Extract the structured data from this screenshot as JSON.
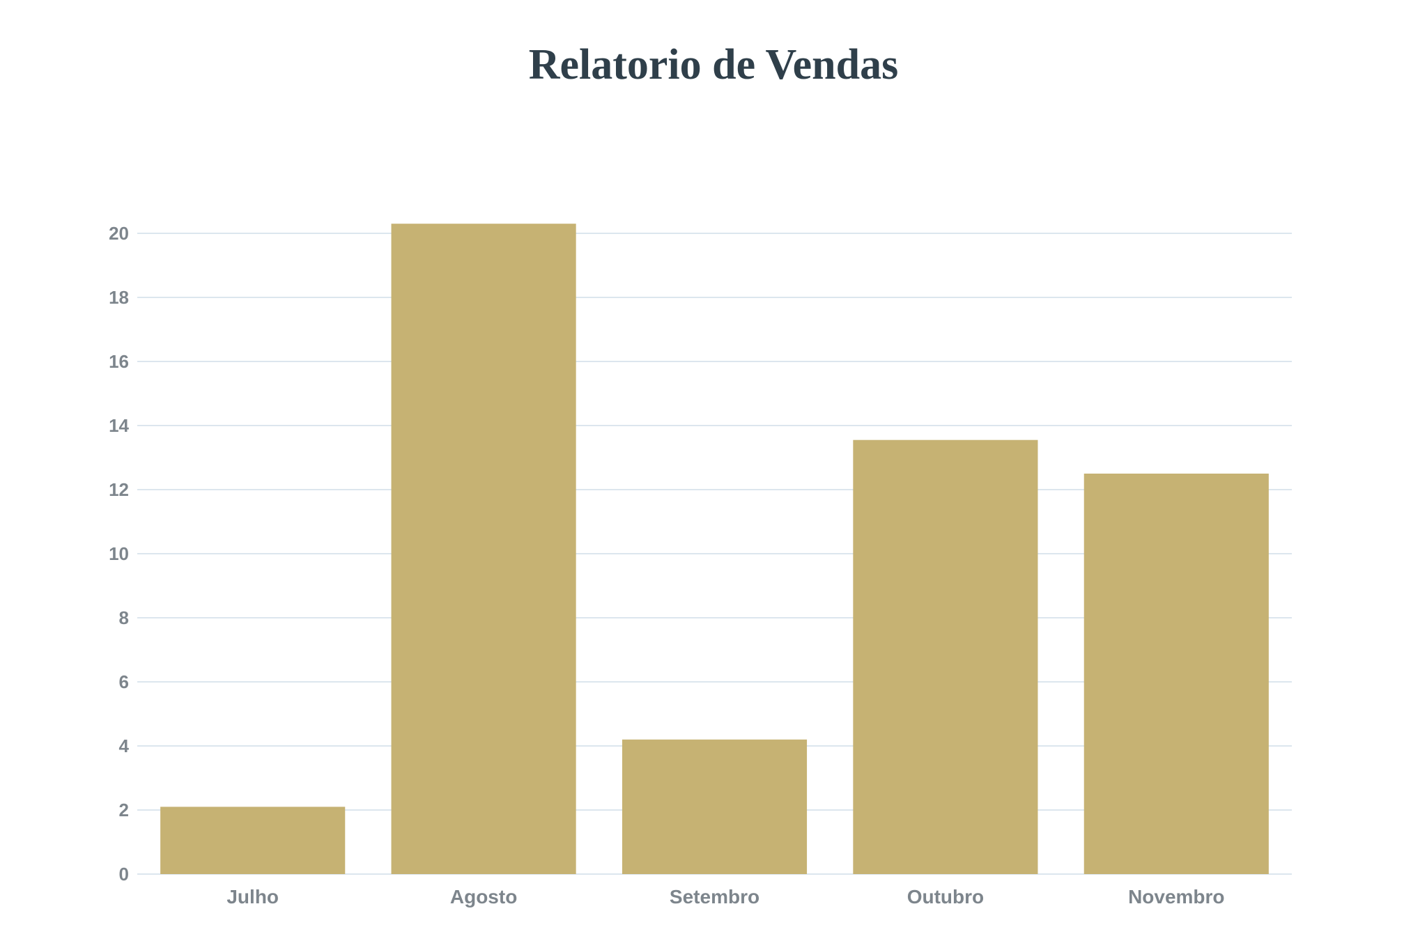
{
  "chart_data": {
    "type": "bar",
    "title": "Relatorio de Vendas",
    "categories": [
      "Julho",
      "Agosto",
      "Setembro",
      "Outubro",
      "Novembro"
    ],
    "values": [
      2.1,
      20.3,
      4.2,
      13.55,
      12.5
    ],
    "ylim": [
      0,
      20
    ],
    "yticks": [
      0,
      2,
      4,
      6,
      8,
      10,
      12,
      14,
      16,
      18,
      20
    ],
    "xlabel": "",
    "ylabel": "",
    "grid": true,
    "bar_color": "#c6b273",
    "legend": "none"
  }
}
